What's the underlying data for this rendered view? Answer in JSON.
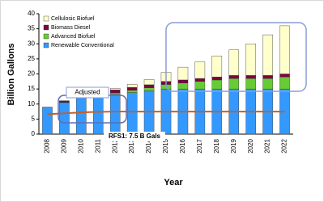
{
  "chart_data": {
    "type": "stacked-bar",
    "y_label": "Billion Gallons",
    "x_label": "Year",
    "categories": [
      "2008",
      "2009",
      "2010",
      "2011",
      "2012",
      "2013",
      "2014",
      "2015",
      "2016",
      "2017",
      "2018",
      "2019",
      "2020",
      "2021",
      "2022"
    ],
    "series": [
      {
        "name": "Renewable Conventional",
        "color": "#3399ff",
        "values": [
          9,
          10.5,
          12,
          12.6,
          13.2,
          13.8,
          14.4,
          15,
          15,
          15,
          15,
          15,
          15,
          15,
          15
        ]
      },
      {
        "name": "Advanced Biofuel",
        "color": "#66cc33",
        "values": [
          0,
          0.1,
          0.2,
          0.3,
          0.5,
          0.75,
          1,
          1.5,
          2,
          2.5,
          3,
          3.5,
          3.5,
          3.5,
          4
        ]
      },
      {
        "name": "Biomass Diesel",
        "color": "#800040",
        "values": [
          0,
          0.5,
          0.65,
          0.8,
          1,
          1,
          1,
          1,
          1,
          1,
          1,
          1,
          1,
          1,
          1
        ]
      },
      {
        "name": "Cellulosic Biofuel",
        "color": "#ffffcc",
        "values": [
          0,
          0,
          0.1,
          0.25,
          0.5,
          1,
          1.75,
          3,
          4.25,
          5.5,
          7,
          8.5,
          10.5,
          13.5,
          16
        ]
      }
    ],
    "reference_line": {
      "color": "#c0602d",
      "values": [
        6.6,
        6.9,
        7.2,
        7.4,
        7.5,
        7.5,
        7.5,
        7.5,
        7.5,
        7.5,
        7.5,
        7.5,
        7.5,
        7.5,
        7.5
      ]
    },
    "annotations": [
      "Adjusted",
      "RFS1: 7.5 B Gals"
    ],
    "ylim": [
      0,
      40
    ],
    "yticks": [
      0,
      5,
      10,
      15,
      20,
      25,
      30,
      35,
      40
    ],
    "legend": "top-left"
  }
}
